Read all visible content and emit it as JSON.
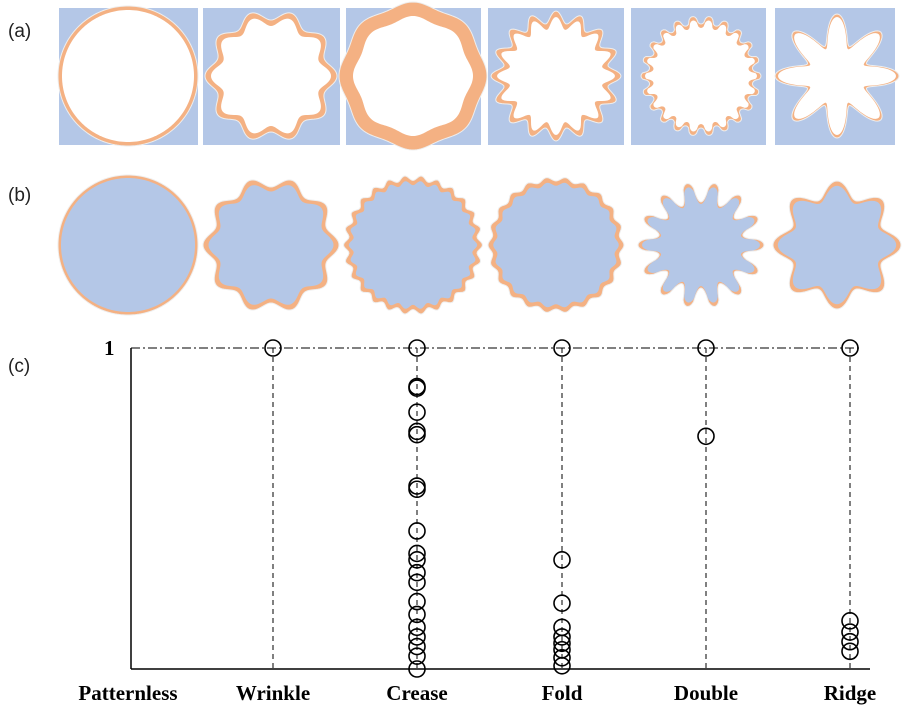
{
  "figure": {
    "panel_labels": [
      "(a)",
      "(b)",
      "(c)"
    ],
    "colors": {
      "matrix": "#b4c7e7",
      "film": "#f4b183",
      "outline": "#eeeeee",
      "ink": "#000000"
    }
  },
  "panel_a": {
    "description_name": "top-row-cavity-patterns",
    "patterns": [
      "Patternless",
      "Wrinkle",
      "Crease",
      "Fold",
      "Double",
      "Ridge"
    ]
  },
  "panel_b": {
    "description_name": "middle-row-core-shell-patterns",
    "patterns": [
      "Patternless",
      "Wrinkle",
      "Crease",
      "Fold",
      "Double",
      "Ridge"
    ]
  },
  "chart_data": {
    "type": "scatter",
    "categories": [
      "Patternless",
      "Wrinkle",
      "Crease",
      "Fold",
      "Double",
      "Ridge"
    ],
    "y_tick_labels": [
      "1"
    ],
    "ylim": [
      0,
      1
    ],
    "grid": false,
    "legend": "none",
    "reference_line": {
      "y": 1,
      "style": "dash-dot"
    },
    "series": [
      {
        "points": [
          {
            "category": "Wrinkle",
            "y": 1.0
          },
          {
            "category": "Crease",
            "y": 1.0
          },
          {
            "category": "Crease",
            "y": 0.88
          },
          {
            "category": "Crease",
            "y": 0.875
          },
          {
            "category": "Crease",
            "y": 0.8
          },
          {
            "category": "Crease",
            "y": 0.74
          },
          {
            "category": "Crease",
            "y": 0.73
          },
          {
            "category": "Crease",
            "y": 0.57
          },
          {
            "category": "Crease",
            "y": 0.56
          },
          {
            "category": "Crease",
            "y": 0.43
          },
          {
            "category": "Crease",
            "y": 0.36
          },
          {
            "category": "Crease",
            "y": 0.34
          },
          {
            "category": "Crease",
            "y": 0.3
          },
          {
            "category": "Crease",
            "y": 0.27
          },
          {
            "category": "Crease",
            "y": 0.21
          },
          {
            "category": "Crease",
            "y": 0.17
          },
          {
            "category": "Crease",
            "y": 0.13
          },
          {
            "category": "Crease",
            "y": 0.1
          },
          {
            "category": "Crease",
            "y": 0.07
          },
          {
            "category": "Crease",
            "y": 0.04
          },
          {
            "category": "Crease",
            "y": 0.0
          },
          {
            "category": "Fold",
            "y": 1.0
          },
          {
            "category": "Fold",
            "y": 0.34
          },
          {
            "category": "Fold",
            "y": 0.205
          },
          {
            "category": "Fold",
            "y": 0.13
          },
          {
            "category": "Fold",
            "y": 0.1
          },
          {
            "category": "Fold",
            "y": 0.08
          },
          {
            "category": "Fold",
            "y": 0.06
          },
          {
            "category": "Fold",
            "y": 0.035
          },
          {
            "category": "Fold",
            "y": 0.01
          },
          {
            "category": "Double",
            "y": 1.0
          },
          {
            "category": "Double",
            "y": 0.725
          },
          {
            "category": "Ridge",
            "y": 1.0
          },
          {
            "category": "Ridge",
            "y": 0.15
          },
          {
            "category": "Ridge",
            "y": 0.115
          },
          {
            "category": "Ridge",
            "y": 0.085
          },
          {
            "category": "Ridge",
            "y": 0.055
          }
        ]
      }
    ]
  }
}
